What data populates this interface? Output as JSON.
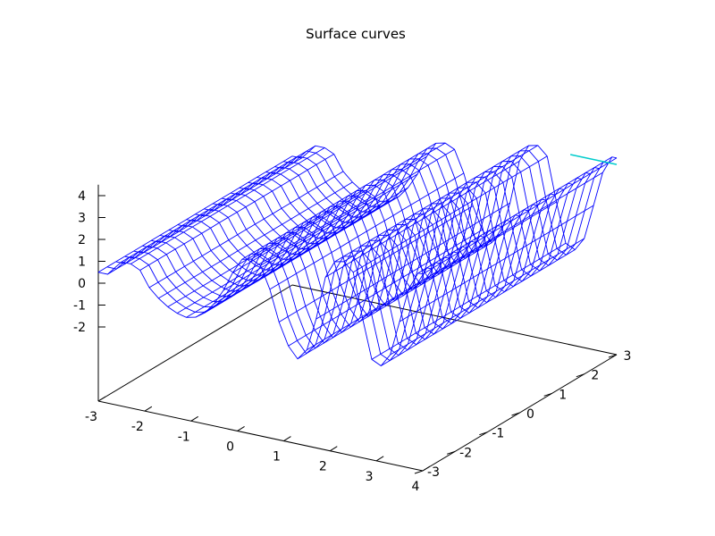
{
  "chart_data": {
    "type": "surface",
    "title": "Surface   curves",
    "x_ticks": [
      "-3",
      "-2",
      "-1",
      "0",
      "1",
      "2",
      "3",
      "4"
    ],
    "y_ticks": [
      "-3",
      "-2",
      "-1",
      "0",
      "1",
      "2",
      "3"
    ],
    "z_ticks": [
      "4",
      "3",
      "2",
      "1",
      "0",
      "-1",
      "-2"
    ],
    "xlim": [
      -3,
      4
    ],
    "ylim": [
      -3,
      3
    ],
    "zlim": [
      -2,
      4.5
    ],
    "series": [
      {
        "style": "wireframe mesh",
        "color": "#0000ff",
        "profile": [
          {
            "x": -3.0,
            "z": 0.5
          },
          {
            "x": -2.8,
            "z": 0.5
          },
          {
            "x": -2.5,
            "z": 1.2
          },
          {
            "x": -2.3,
            "z": 1.2
          },
          {
            "x": -2.1,
            "z": 1.0
          },
          {
            "x": -1.9,
            "z": 0.3
          },
          {
            "x": -1.7,
            "z": -0.1
          },
          {
            "x": -1.5,
            "z": -0.4
          },
          {
            "x": -1.3,
            "z": -0.6
          },
          {
            "x": -1.1,
            "z": -0.7
          },
          {
            "x": -0.9,
            "z": -0.6
          },
          {
            "x": -0.7,
            "z": -0.3
          },
          {
            "x": -0.5,
            "z": 0.2
          },
          {
            "x": -0.3,
            "z": 0.9
          },
          {
            "x": -0.1,
            "z": 1.8
          },
          {
            "x": 0.1,
            "z": 2.5
          },
          {
            "x": 0.3,
            "z": 2.6
          },
          {
            "x": 0.5,
            "z": 2.4
          },
          {
            "x": 0.7,
            "z": 1.4
          },
          {
            "x": 0.9,
            "z": 0.0
          },
          {
            "x": 1.1,
            "z": -1.0
          },
          {
            "x": 1.3,
            "z": -1.5
          },
          {
            "x": 1.5,
            "z": -1.0
          },
          {
            "x": 1.7,
            "z": 0.5
          },
          {
            "x": 1.9,
            "z": 2.5
          },
          {
            "x": 2.1,
            "z": 3.3
          },
          {
            "x": 2.3,
            "z": 3.4
          },
          {
            "x": 2.5,
            "z": 3.0
          },
          {
            "x": 2.7,
            "z": 1.0
          },
          {
            "x": 2.9,
            "z": -0.8
          },
          {
            "x": 3.1,
            "z": -1.0
          },
          {
            "x": 3.3,
            "z": -0.4
          },
          {
            "x": 3.5,
            "z": 1.2
          },
          {
            "x": 3.7,
            "z": 2.8
          },
          {
            "x": 3.9,
            "z": 3.6
          },
          {
            "x": 4.0,
            "z": 3.6
          }
        ]
      },
      {
        "style": "line",
        "color": "#00cccc",
        "points": [
          {
            "x": 3.0,
            "y": 3.0,
            "z": 3.3
          },
          {
            "x": 4.0,
            "y": 3.0,
            "z": 3.3
          }
        ]
      }
    ],
    "grid": false,
    "legend": "none"
  }
}
